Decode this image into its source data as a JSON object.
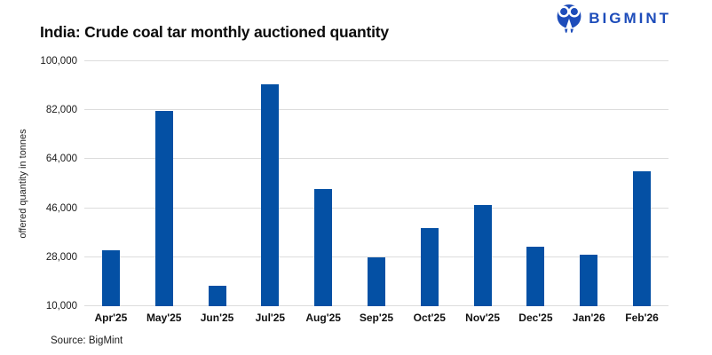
{
  "header": {
    "title": "India: Crude coal tar monthly auctioned quantity",
    "logo_text": "BIGMINT",
    "logo_color": "#1d4cba"
  },
  "footer": {
    "source": "Source: BigMint"
  },
  "chart_data": {
    "type": "bar",
    "title": "India: Crude coal tar monthly auctioned quantity",
    "xlabel": "",
    "ylabel": "offered quantity in tonnes",
    "ylim": [
      10000,
      100000
    ],
    "grid": true,
    "legend": "none",
    "bar_color": "#0450a4",
    "gridline_color": "#dcdcdc",
    "yticks": [
      {
        "value": 10000,
        "label": "10,000"
      },
      {
        "value": 28000,
        "label": "28,000"
      },
      {
        "value": 46000,
        "label": "46,000"
      },
      {
        "value": 64000,
        "label": "64,000"
      },
      {
        "value": 82000,
        "label": "82,000"
      },
      {
        "value": 100000,
        "label": "100,000"
      }
    ],
    "categories": [
      "Apr'25",
      "May'25",
      "Jun'25",
      "Jul'25",
      "Aug'25",
      "Sep'25",
      "Oct'25",
      "Nov'25",
      "Dec'25",
      "Jan'26",
      "Feb'26"
    ],
    "values": [
      30500,
      81800,
      17500,
      91400,
      53000,
      28000,
      38800,
      47200,
      32000,
      29000,
      59700
    ],
    "source": "Source: BigMint"
  }
}
